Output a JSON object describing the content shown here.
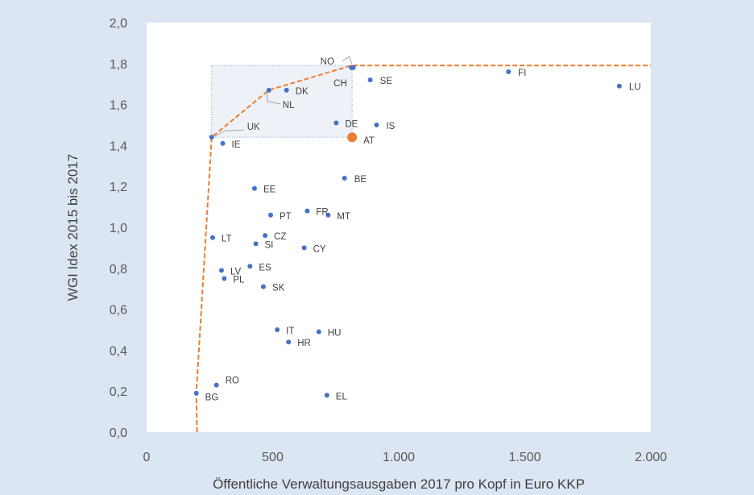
{
  "chart_data": {
    "type": "scatter",
    "title": "",
    "xlabel": "Öffentliche Verwaltungsausgaben 2017 pro Kopf in Euro KKP",
    "ylabel": "WGI Idex 2015 bis 2017",
    "xlim": [
      0,
      2000
    ],
    "ylim": [
      0,
      2.0
    ],
    "xticks": [
      0,
      500,
      1000,
      1500,
      2000
    ],
    "xtick_labels": [
      "0",
      "500",
      "1.000",
      "1.500",
      "2.000"
    ],
    "yticks": [
      0,
      0.2,
      0.4,
      0.6,
      0.8,
      1.0,
      1.2,
      1.4,
      1.6,
      1.8,
      2.0
    ],
    "ytick_labels": [
      "0,0",
      "0,2",
      "0,4",
      "0,6",
      "0,8",
      "1,0",
      "1,2",
      "1,4",
      "1,6",
      "1,8",
      "2,0"
    ],
    "grid": false,
    "colors": {
      "points": "#4472c4",
      "highlight": "#ed7d31",
      "frontier": "#ed7d31",
      "box": "#7f9fd0"
    },
    "points": [
      {
        "label": "LU",
        "x": 1875,
        "y": 1.69
      },
      {
        "label": "FI",
        "x": 1435,
        "y": 1.76
      },
      {
        "label": "SE",
        "x": 887,
        "y": 1.72
      },
      {
        "label": "NO",
        "x": 820,
        "y": 1.78
      },
      {
        "label": "CH",
        "x": 812,
        "y": 1.78
      },
      {
        "label": "DK",
        "x": 555,
        "y": 1.67
      },
      {
        "label": "NL",
        "x": 485,
        "y": 1.67
      },
      {
        "label": "IS",
        "x": 912,
        "y": 1.5
      },
      {
        "label": "DE",
        "x": 752,
        "y": 1.51
      },
      {
        "label": "AT",
        "x": 815,
        "y": 1.44,
        "highlight": true
      },
      {
        "label": "UK",
        "x": 258,
        "y": 1.44
      },
      {
        "label": "IE",
        "x": 302,
        "y": 1.41
      },
      {
        "label": "BE",
        "x": 785,
        "y": 1.24
      },
      {
        "label": "EE",
        "x": 428,
        "y": 1.19
      },
      {
        "label": "FR",
        "x": 637,
        "y": 1.08
      },
      {
        "label": "MT",
        "x": 720,
        "y": 1.06
      },
      {
        "label": "PT",
        "x": 492,
        "y": 1.06
      },
      {
        "label": "CZ",
        "x": 470,
        "y": 0.96
      },
      {
        "label": "LT",
        "x": 262,
        "y": 0.95
      },
      {
        "label": "SI",
        "x": 433,
        "y": 0.92
      },
      {
        "label": "CY",
        "x": 625,
        "y": 0.9
      },
      {
        "label": "ES",
        "x": 410,
        "y": 0.81
      },
      {
        "label": "LV",
        "x": 297,
        "y": 0.79
      },
      {
        "label": "PL",
        "x": 308,
        "y": 0.75
      },
      {
        "label": "SK",
        "x": 463,
        "y": 0.71
      },
      {
        "label": "IT",
        "x": 518,
        "y": 0.5
      },
      {
        "label": "HU",
        "x": 683,
        "y": 0.49
      },
      {
        "label": "HR",
        "x": 563,
        "y": 0.44
      },
      {
        "label": "RO",
        "x": 277,
        "y": 0.23
      },
      {
        "label": "BG",
        "x": 197,
        "y": 0.19
      },
      {
        "label": "EL",
        "x": 715,
        "y": 0.18
      }
    ],
    "frontier": [
      {
        "x": 200,
        "y": 0.0
      },
      {
        "x": 197,
        "y": 0.19
      },
      {
        "x": 258,
        "y": 1.44
      },
      {
        "x": 485,
        "y": 1.67
      },
      {
        "x": 812,
        "y": 1.79
      },
      {
        "x": 2000,
        "y": 1.79
      }
    ],
    "box": {
      "x0": 258,
      "x1": 815,
      "y0": 1.44,
      "y1": 1.79
    }
  }
}
